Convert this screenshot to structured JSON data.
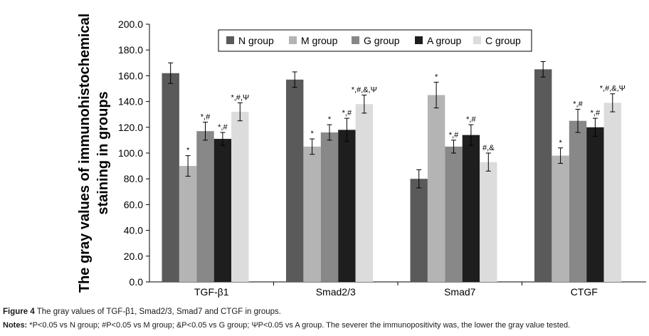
{
  "chart_data": {
    "type": "bar",
    "ylabel_line1": "The gray values of immunohistochemical",
    "ylabel_line2": "staining in groups",
    "ylim": [
      0,
      200
    ],
    "ytick_step": 20,
    "ytick_labels": [
      "0.0",
      "20.0",
      "40.0",
      "60.0",
      "80.0",
      "100.0",
      "120.0",
      "140.0",
      "160.0",
      "180.0",
      "200.0"
    ],
    "categories": [
      "TGF-β1",
      "Smad2/3",
      "Smad7",
      "CTGF"
    ],
    "series": [
      {
        "name": "N group",
        "color": "#5a5a5a",
        "values": [
          162,
          157,
          80,
          165
        ],
        "errors": [
          8,
          6,
          7,
          6
        ],
        "labels": [
          "",
          "",
          "",
          ""
        ]
      },
      {
        "name": "M group",
        "color": "#b4b4b4",
        "values": [
          90,
          105,
          145,
          98
        ],
        "errors": [
          8,
          6,
          10,
          6
        ],
        "labels": [
          "*",
          "*",
          "*",
          "*"
        ]
      },
      {
        "name": "G group",
        "color": "#888888",
        "values": [
          117,
          116,
          105,
          125
        ],
        "errors": [
          7,
          6,
          5,
          9
        ],
        "labels": [
          "*,#",
          "*",
          "*,#",
          "*,#"
        ]
      },
      {
        "name": "A group",
        "color": "#1e1e1e",
        "values": [
          111,
          118,
          114,
          120
        ],
        "errors": [
          5,
          9,
          8,
          7
        ],
        "labels": [
          "*,#",
          "*,#",
          "*,#",
          "*,#"
        ]
      },
      {
        "name": "C group",
        "color": "#dcdcdc",
        "values": [
          132,
          138,
          93,
          139
        ],
        "errors": [
          7,
          7,
          7,
          7
        ],
        "labels": [
          "*,#,Ψ",
          "*,#,&,Ψ",
          "#,&",
          "*,#,&,Ψ"
        ]
      }
    ]
  },
  "caption": {
    "figure_label": "Figure 4",
    "figure_text": "The gray values of TGF-β1, Smad2/3, Smad7 and CTGF in groups.",
    "notes_label": "Notes:",
    "notes_text": "*P<0.05 vs N group; #P<0.05 vs M group; &P<0.05 vs G group; ΨP<0.05 vs A group. The severer the immunopositivity was, the lower the gray value tested."
  }
}
